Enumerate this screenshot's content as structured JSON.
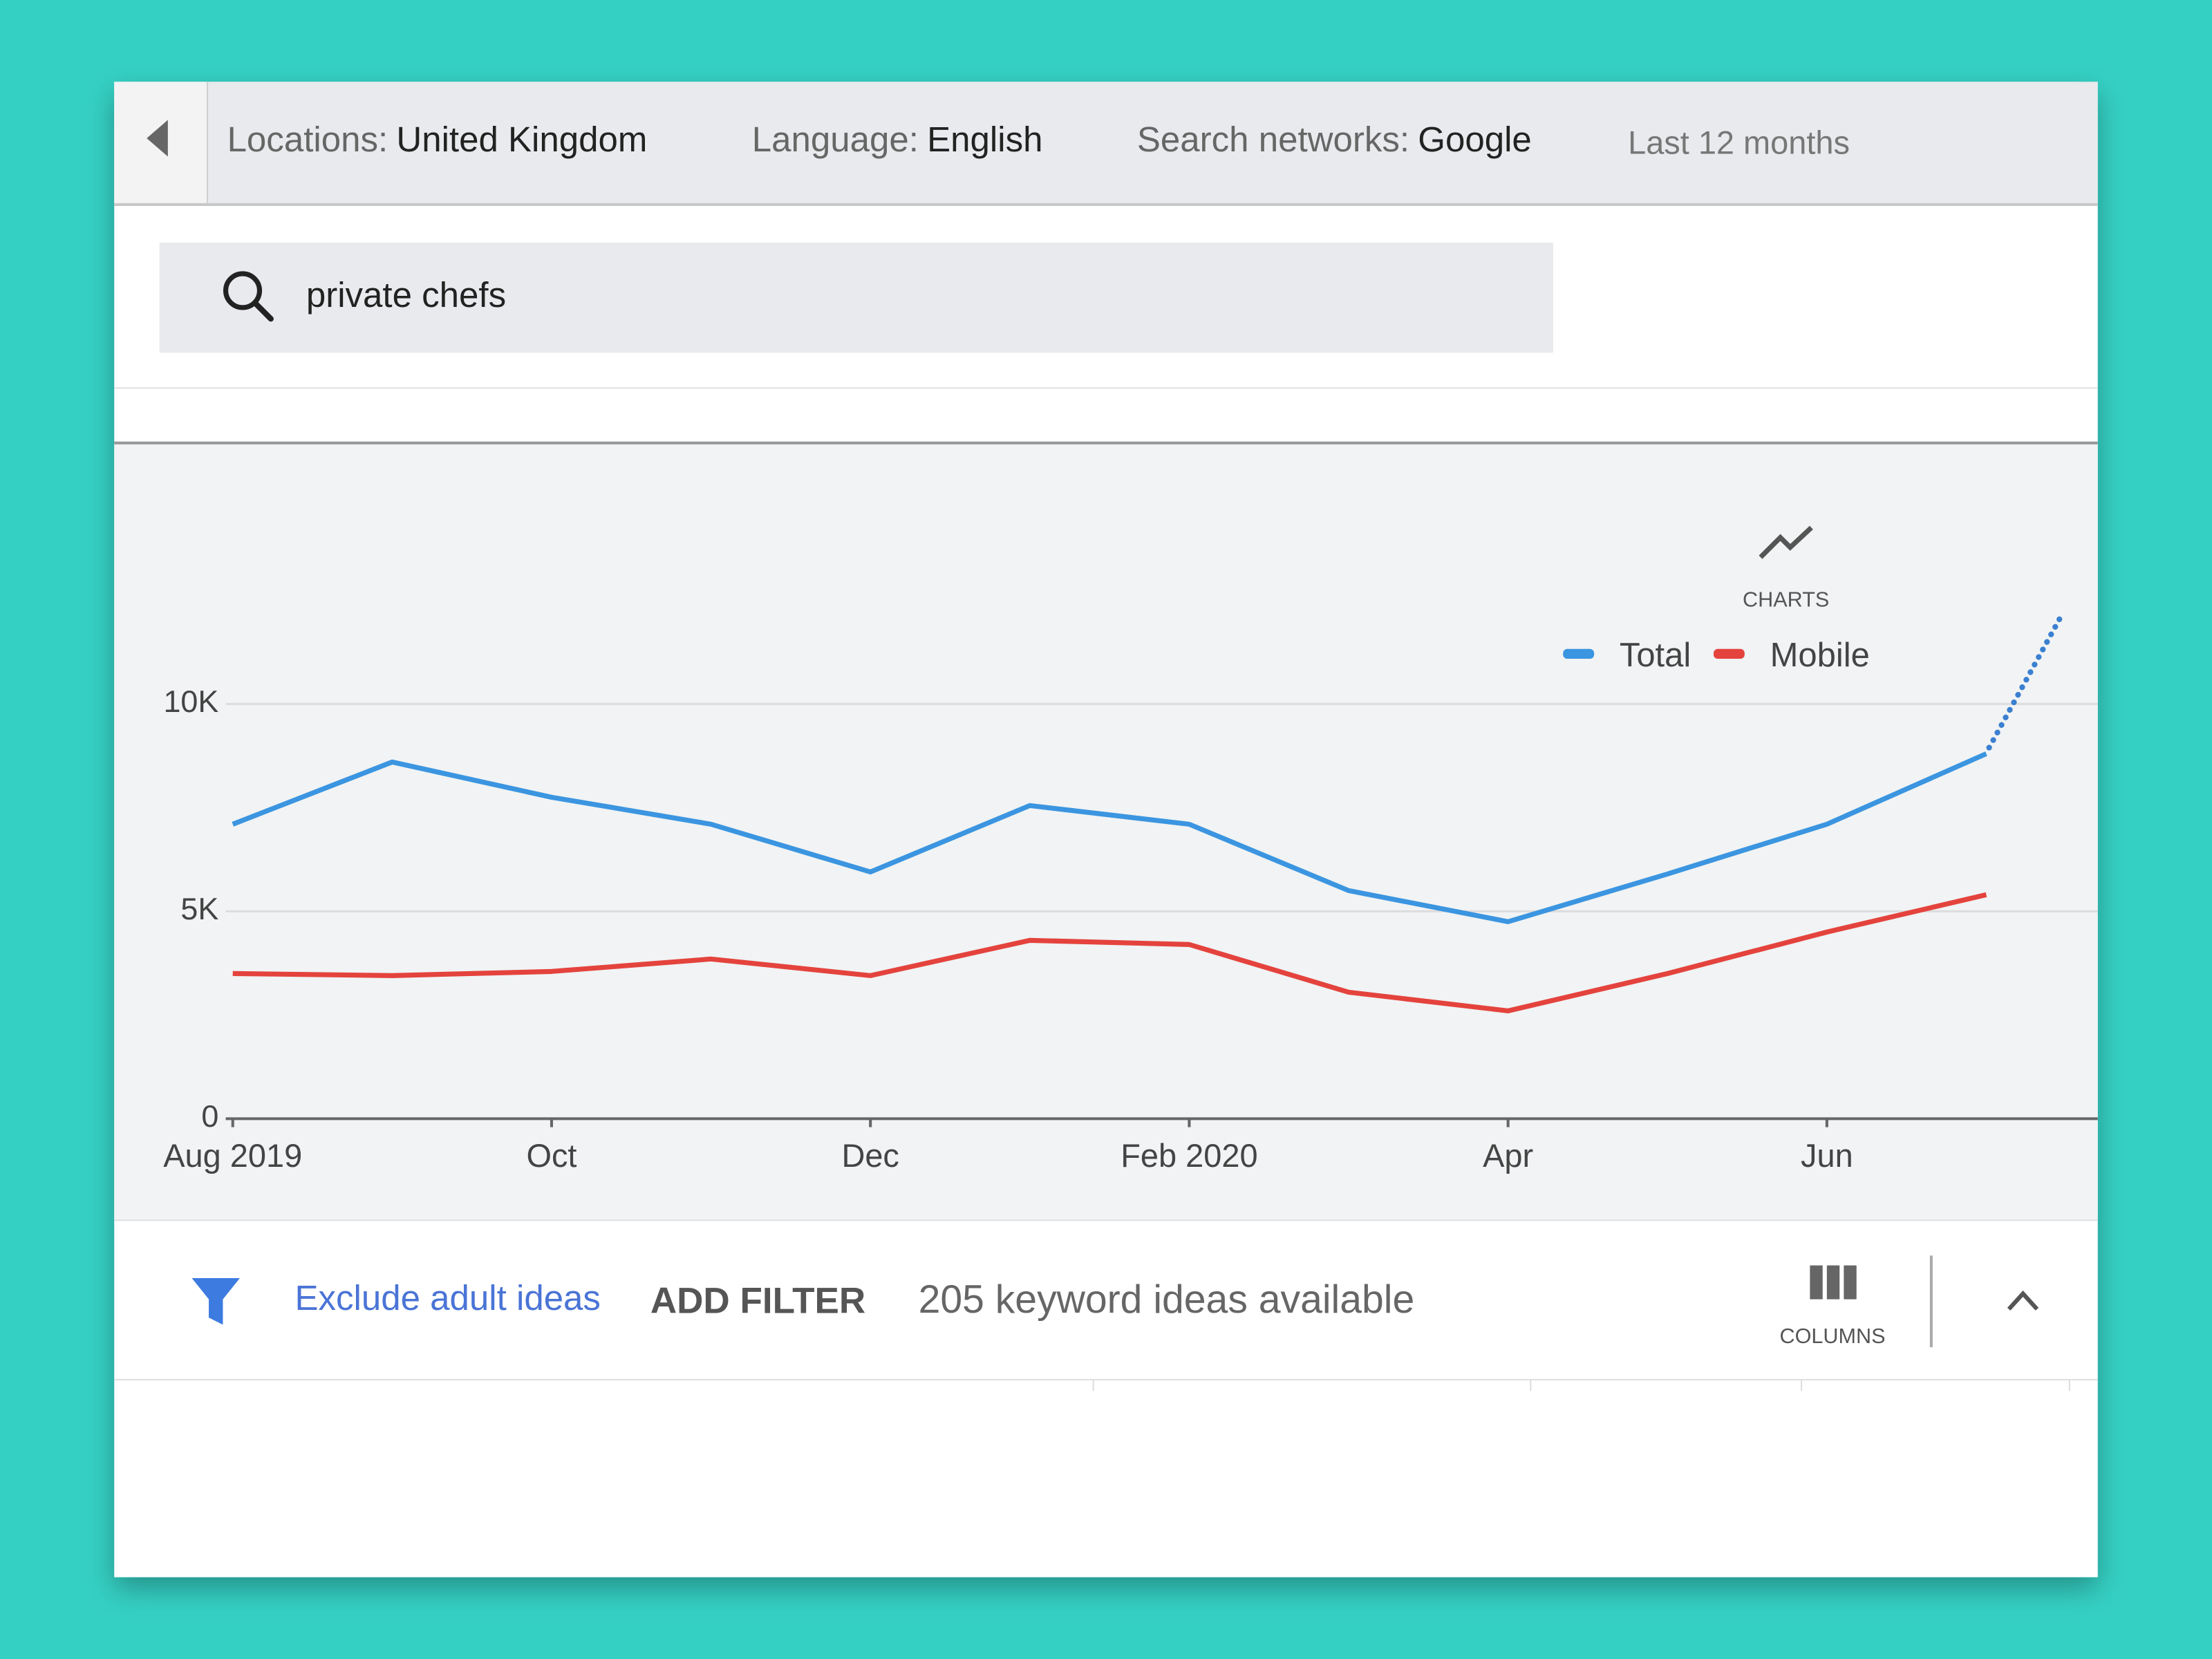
{
  "header": {
    "filters": [
      {
        "label": "Locations:",
        "value": "United Kingdom"
      },
      {
        "label": "Language:",
        "value": "English"
      },
      {
        "label": "Search networks:",
        "value": "Google"
      }
    ],
    "period": "Last 12 months"
  },
  "search": {
    "query": "private chefs"
  },
  "chart_data": {
    "type": "line",
    "charts_button": "CHARTS",
    "categories": [
      "Aug 2019",
      null,
      "Oct",
      null,
      "Dec",
      null,
      "Feb 2020",
      null,
      "Apr",
      null,
      "Jun",
      null
    ],
    "series": [
      {
        "name": "Total",
        "color": "#3b95e0",
        "values": [
          7100,
          8600,
          7750,
          7100,
          5950,
          7550,
          7100,
          5500,
          4750,
          5900,
          7100,
          8800
        ]
      },
      {
        "name": "Mobile",
        "color": "#e4433d",
        "values": [
          3500,
          3450,
          3550,
          3850,
          3450,
          4300,
          4200,
          3050,
          2600,
          3500,
          4500,
          5400
        ]
      }
    ],
    "ylim": [
      0,
      15000
    ],
    "yticks": [
      0,
      {
        "value": 5000,
        "label": "5K"
      },
      {
        "value": 10000,
        "label": "10K"
      }
    ],
    "grid": true,
    "legend": "top-right"
  },
  "footer": {
    "exclude": "Exclude adult ideas",
    "add_filter": "ADD FILTER",
    "count": "205 keyword ideas available",
    "columns": "COLUMNS"
  }
}
